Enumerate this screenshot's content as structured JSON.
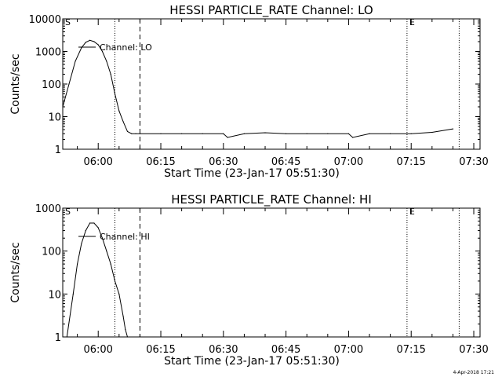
{
  "footer_timestamp": "4-Apr-2018 17:21",
  "colors": {
    "background": "#ffffff",
    "foreground": "#000000"
  },
  "chart_data": [
    {
      "type": "line",
      "title": "HESSI PARTICLE_RATE Channel: LO",
      "xlabel": "Start Time (23-Jan-17 05:51:30)",
      "ylabel": "Counts/sec",
      "yscale": "log",
      "ylim": [
        1,
        10000
      ],
      "ytick_labels": [
        "1",
        "10",
        "100",
        "1000",
        "10000"
      ],
      "ytick_values": [
        1,
        10,
        100,
        1000,
        10000
      ],
      "xlim": [
        "05:51:30",
        "07:31:30"
      ],
      "xtick_labels": [
        "06:00",
        "06:15",
        "06:30",
        "06:45",
        "07:00",
        "07:15",
        "07:30"
      ],
      "series": [
        {
          "name": "Channel: LO",
          "x": [
            "05:51:30",
            "05:53:00",
            "05:54:30",
            "05:56:00",
            "05:57:00",
            "05:58:00",
            "05:59:00",
            "06:00:00",
            "06:01:00",
            "06:02:00",
            "06:03:00",
            "06:04:00",
            "06:05:00",
            "06:06:00",
            "06:07:00",
            "06:08:00",
            "06:09:00",
            "06:10:00",
            "06:15:00",
            "06:20:00",
            "06:25:00",
            "06:30:00",
            "06:31:00",
            "06:35:00",
            "06:40:00",
            "06:45:00",
            "06:50:00",
            "06:55:00",
            "07:00:00",
            "07:01:00",
            "07:05:00",
            "07:10:00",
            "07:15:00",
            "07:20:00",
            "07:25:00"
          ],
          "y": [
            20,
            100,
            500,
            1300,
            1900,
            2200,
            2000,
            1600,
            1000,
            500,
            200,
            50,
            15,
            7,
            3.5,
            3,
            3,
            3,
            3,
            3,
            3,
            3,
            2.3,
            3,
            3.2,
            3,
            3,
            3,
            3,
            2.3,
            3,
            3,
            3,
            3.3,
            4.2
          ]
        }
      ],
      "markers": {
        "solid_vertical": [
          "06:04:00",
          "07:14:00",
          "07:26:30"
        ],
        "dashed_vertical": [
          "06:10:00"
        ],
        "labels": [
          {
            "text": "S",
            "x": "05:51:30"
          },
          {
            "text": "E",
            "x": "07:14:00"
          }
        ]
      },
      "legend": {
        "text": "Channel: LO",
        "placement": "top-left"
      }
    },
    {
      "type": "line",
      "title": "HESSI PARTICLE_RATE Channel: HI",
      "xlabel": "Start Time (23-Jan-17 05:51:30)",
      "ylabel": "Counts/sec",
      "yscale": "log",
      "ylim": [
        1,
        1000
      ],
      "ytick_labels": [
        "1",
        "10",
        "100",
        "1000"
      ],
      "ytick_values": [
        1,
        10,
        100,
        1000
      ],
      "xlim": [
        "05:51:30",
        "07:31:30"
      ],
      "xtick_labels": [
        "06:00",
        "06:15",
        "06:30",
        "06:45",
        "07:00",
        "07:15",
        "07:30"
      ],
      "series": [
        {
          "name": "Channel: HI",
          "x": [
            "05:52:30",
            "05:54:00",
            "05:55:00",
            "05:56:00",
            "05:57:00",
            "05:58:00",
            "05:59:00",
            "06:00:00",
            "06:01:00",
            "06:02:00",
            "06:03:00",
            "06:04:00",
            "06:05:00",
            "06:06:00",
            "06:06:30",
            "06:07:00"
          ],
          "y": [
            1,
            10,
            50,
            150,
            300,
            450,
            450,
            350,
            200,
            100,
            50,
            20,
            10,
            3,
            1.5,
            1
          ]
        }
      ],
      "markers": {
        "solid_vertical": [
          "06:04:00",
          "07:14:00",
          "07:26:30"
        ],
        "dashed_vertical": [
          "06:10:00"
        ],
        "labels": [
          {
            "text": "S",
            "x": "05:51:30"
          },
          {
            "text": "E",
            "x": "07:14:00"
          }
        ]
      },
      "legend": {
        "text": "Channel: HI",
        "placement": "top-left"
      }
    }
  ]
}
